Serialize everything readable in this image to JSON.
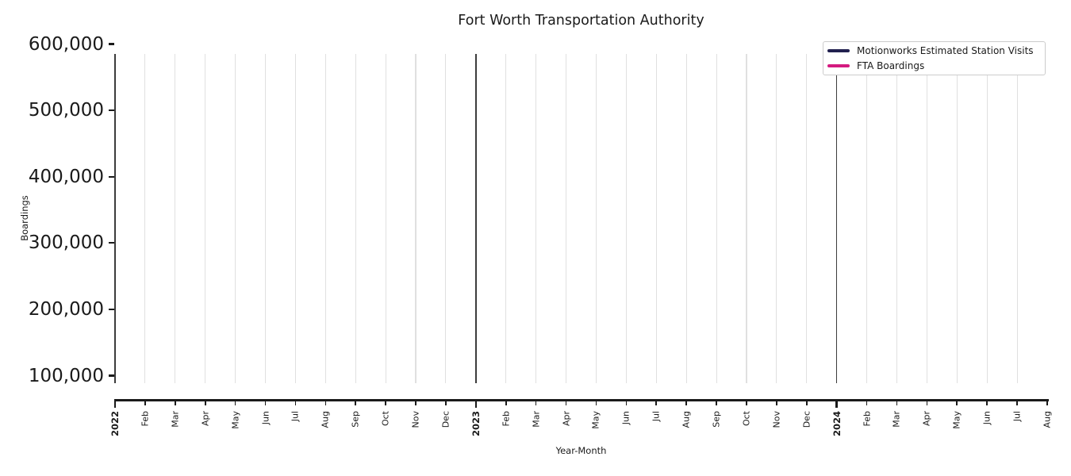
{
  "chart_data": {
    "type": "line",
    "title": "Fort Worth Transportation Authority",
    "xlabel": "Year-Month",
    "ylabel": "Boardings",
    "x_categories": [
      "2022",
      "Feb",
      "Mar",
      "Apr",
      "May",
      "Jun",
      "Jul",
      "Aug",
      "Sep",
      "Oct",
      "Nov",
      "Dec",
      "2023",
      "Feb",
      "Mar",
      "Apr",
      "May",
      "Jun",
      "Jul",
      "Aug",
      "Sep",
      "Oct",
      "Nov",
      "Dec",
      "2024",
      "Feb",
      "Mar",
      "Apr",
      "May",
      "Jun",
      "Jul",
      "Aug"
    ],
    "xlim": [
      "2022-01",
      "2024-08"
    ],
    "y_ticks": [
      {
        "value": 100000,
        "label": "100,000"
      },
      {
        "value": 200000,
        "label": "200,000"
      },
      {
        "value": 300000,
        "label": "300,000"
      },
      {
        "value": 400000,
        "label": "400,000"
      },
      {
        "value": 500000,
        "label": "500,000"
      },
      {
        "value": 600000,
        "label": "600,000"
      }
    ],
    "ylim": [
      100000,
      600000
    ],
    "series": [
      {
        "name": "Motionworks Estimated Station Visits",
        "color": "#21204f",
        "values": []
      },
      {
        "name": "FTA Boardings",
        "color": "#d41a7f",
        "values": []
      }
    ],
    "legend_position": "upper right",
    "grid": {
      "vertical": true,
      "horizontal": false,
      "month_line_color": "#e0e0e0",
      "year_line_color": "#3c3c3c",
      "last_category_has_gridline": false
    }
  }
}
